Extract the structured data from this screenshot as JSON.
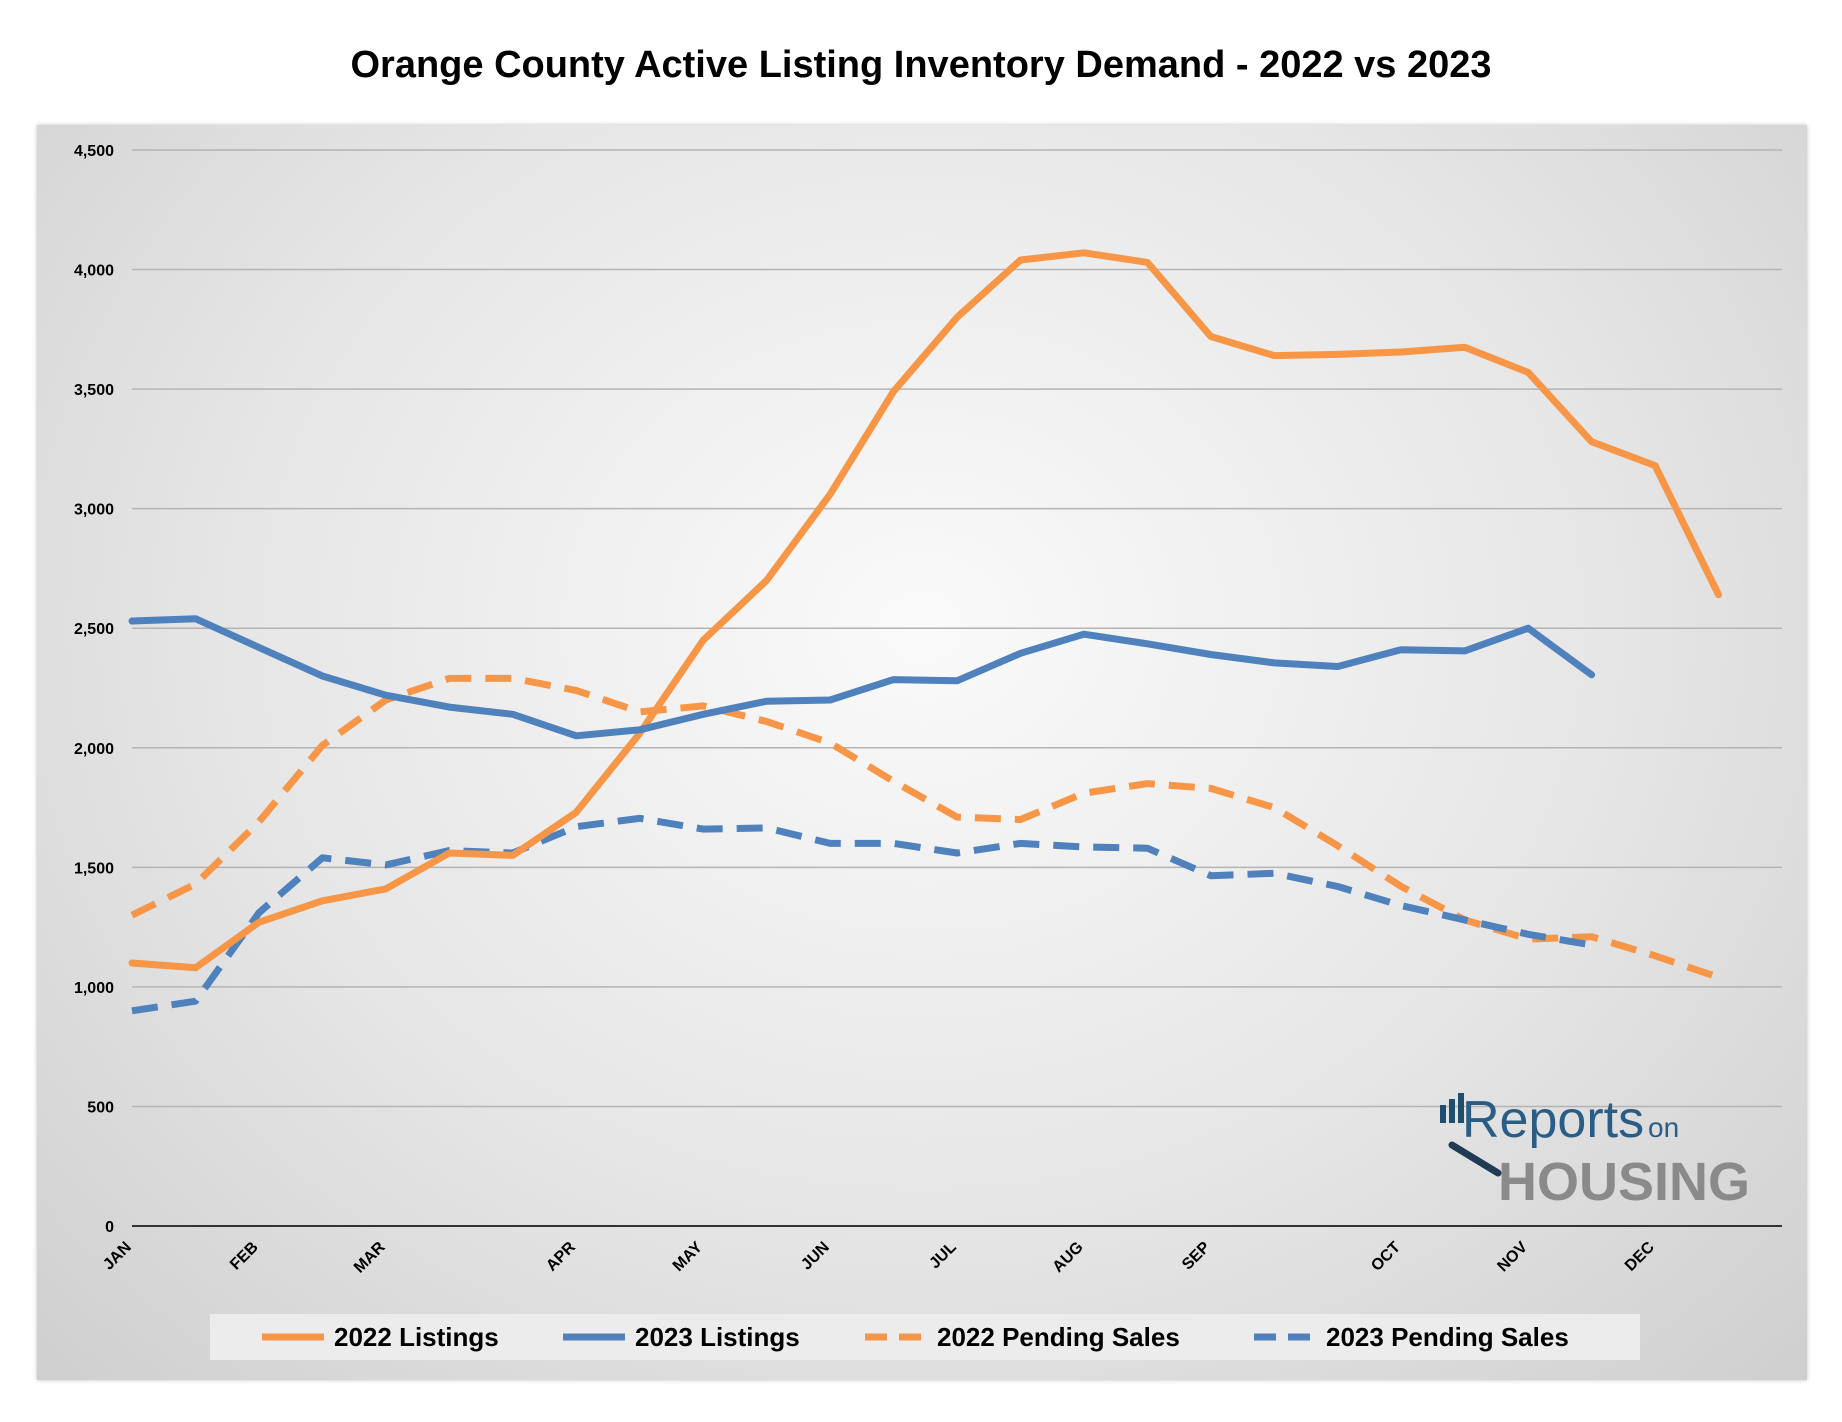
{
  "chart_data": {
    "type": "line",
    "title": "Orange County Active Listing Inventory Demand - 2022 vs 2023",
    "xlabel": "",
    "ylabel": "",
    "ylim": [
      0,
      4500
    ],
    "yticks": [
      0,
      500,
      1000,
      1500,
      2000,
      2500,
      3000,
      3500,
      4000,
      4500
    ],
    "ytick_labels": [
      "0",
      "500",
      "1,000",
      "1,500",
      "2,000",
      "2,500",
      "3,000",
      "3,500",
      "4,000",
      "4,500"
    ],
    "x_weeks": [
      0,
      2,
      4,
      6,
      8,
      10,
      12,
      14,
      16,
      18,
      20,
      22,
      24,
      26,
      28,
      30,
      32,
      34,
      36,
      38,
      40,
      42,
      44,
      46,
      48,
      50,
      52
    ],
    "xlim": [
      0,
      52
    ],
    "month_ticks": [
      {
        "label": "JAN",
        "week": 0
      },
      {
        "label": "FEB",
        "week": 4
      },
      {
        "label": "MAR",
        "week": 8
      },
      {
        "label": "APR",
        "week": 14
      },
      {
        "label": "MAY",
        "week": 18
      },
      {
        "label": "JUN",
        "week": 22
      },
      {
        "label": "JUL",
        "week": 26
      },
      {
        "label": "AUG",
        "week": 30
      },
      {
        "label": "SEP",
        "week": 34
      },
      {
        "label": "OCT",
        "week": 40
      },
      {
        "label": "NOV",
        "week": 44
      },
      {
        "label": "DEC",
        "week": 48
      }
    ],
    "grid": true,
    "legend_position": "bottom",
    "series": [
      {
        "name": "2022 Listings",
        "color": "#F79646",
        "dash": false,
        "values": [
          1100,
          1080,
          1270,
          1360,
          1410,
          1560,
          1550,
          1730,
          2060,
          2450,
          2700,
          3060,
          3490,
          3800,
          4040,
          4070,
          4030,
          3720,
          3640,
          3645,
          3655,
          3675,
          3570,
          3280,
          3180,
          2640,
          null
        ]
      },
      {
        "name": "2023 Listings",
        "color": "#4F81BD",
        "dash": false,
        "values": [
          2530,
          2540,
          2420,
          2300,
          2220,
          2170,
          2140,
          2050,
          2075,
          2140,
          2195,
          2200,
          2285,
          2280,
          2395,
          2475,
          2435,
          2390,
          2355,
          2340,
          2410,
          2405,
          2500,
          2305,
          null,
          null,
          null
        ]
      },
      {
        "name": "2022 Pending Sales",
        "color": "#F79646",
        "dash": true,
        "values": [
          1300,
          1430,
          1690,
          2010,
          2200,
          2290,
          2290,
          2240,
          2150,
          2175,
          2110,
          2020,
          1860,
          1710,
          1700,
          1810,
          1850,
          1830,
          1750,
          1590,
          1420,
          1280,
          1200,
          1210,
          1130,
          1040,
          null
        ]
      },
      {
        "name": "2023 Pending Sales",
        "color": "#4F81BD",
        "dash": true,
        "values": [
          900,
          940,
          1310,
          1540,
          1510,
          1570,
          1560,
          1670,
          1705,
          1660,
          1665,
          1600,
          1600,
          1560,
          1600,
          1585,
          1580,
          1465,
          1475,
          1420,
          1340,
          1280,
          1220,
          1175,
          null,
          null,
          null
        ]
      }
    ]
  },
  "logo": {
    "text_top": "Reports",
    "text_on": "on",
    "text_bottom": "HOUSING"
  }
}
